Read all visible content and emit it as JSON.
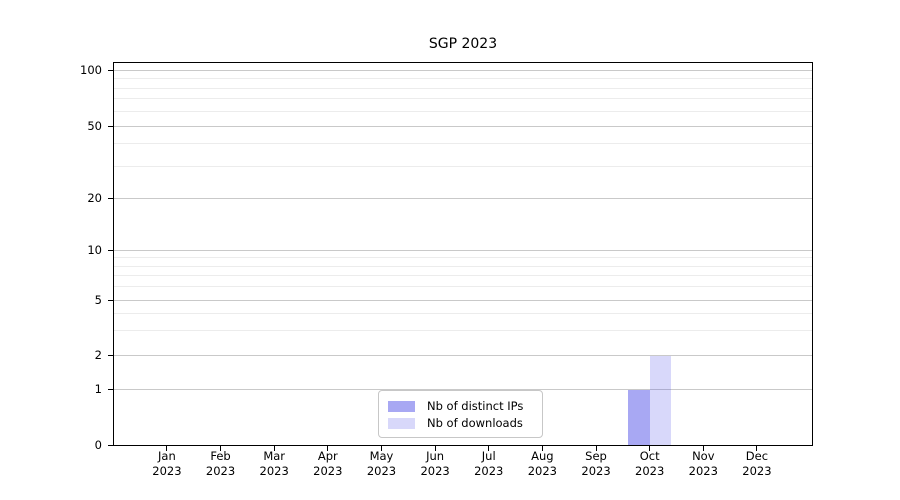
{
  "chart_data": {
    "type": "bar",
    "title": "SGP 2023",
    "categories": [
      "Jan 2023",
      "Feb 2023",
      "Mar 2023",
      "Apr 2023",
      "May 2023",
      "Jun 2023",
      "Jul 2023",
      "Aug 2023",
      "Sep 2023",
      "Oct 2023",
      "Nov 2023",
      "Dec 2023"
    ],
    "series": [
      {
        "name": "Nb of distinct IPs",
        "color_rgb": "70,70,230",
        "alpha": 0.47,
        "values": [
          0,
          0,
          0,
          0,
          0,
          0,
          0,
          0,
          0,
          1,
          0,
          0
        ]
      },
      {
        "name": "Nb of downloads",
        "color_rgb": "70,70,230",
        "alpha": 0.21,
        "values": [
          0,
          0,
          0,
          0,
          0,
          0,
          0,
          0,
          0,
          2,
          0,
          0
        ]
      }
    ],
    "yscale": "log-like",
    "yticks": [
      0,
      1,
      2,
      5,
      10,
      20,
      50,
      100
    ],
    "minor_gridlines": [
      3,
      4,
      6,
      7,
      8,
      9,
      30,
      40,
      60,
      70,
      80,
      90
    ],
    "ylim": [
      0,
      100
    ],
    "xlabel": "",
    "ylabel": "",
    "grid": true,
    "legend_position": "inside-bottom-center"
  }
}
